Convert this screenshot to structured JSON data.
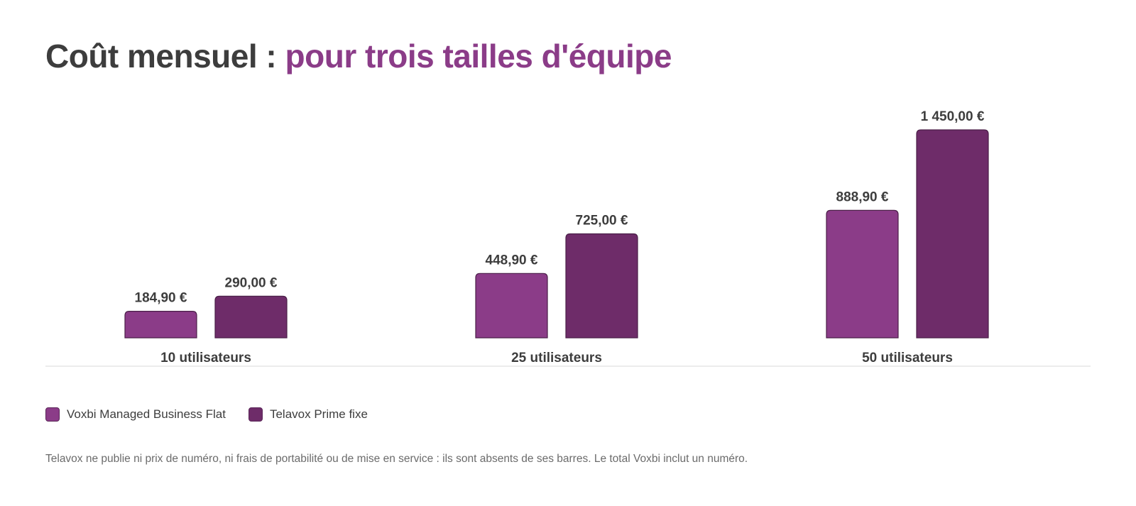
{
  "title": {
    "main": "Coût mensuel : ",
    "accent": "pour trois tailles d'équipe"
  },
  "chart_data": {
    "type": "bar",
    "categories": [
      "10 utilisateurs",
      "25 utilisateurs",
      "50 utilisateurs"
    ],
    "series": [
      {
        "name": "Voxbi Managed Business Flat",
        "color": "#8b3c88",
        "values": [
          184.9,
          448.9,
          888.9
        ],
        "labels": [
          "184,90 €",
          "448,90 €",
          "888,90 €"
        ]
      },
      {
        "name": "Telavox Prime fixe",
        "color": "#6e2c69",
        "values": [
          290,
          725,
          1450
        ],
        "labels": [
          "290,00 €",
          "725,00 €",
          "1 450,00 €"
        ]
      }
    ],
    "ylim": [
      0,
      1450
    ],
    "grid": false,
    "legend": "bottom-left"
  },
  "footnote": "Telavox ne publie ni prix de numéro, ni frais de portabilité ou de mise en service : ils sont absents de ses barres. Le total Voxbi inclut un numéro."
}
